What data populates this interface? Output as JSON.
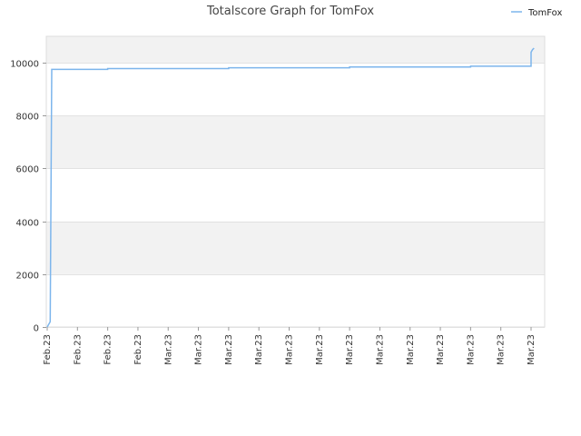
{
  "chart_data": {
    "type": "line",
    "title": "Totalscore Graph for TomFox",
    "xlabel": "",
    "ylabel": "",
    "ylim": [
      0,
      11000
    ],
    "yticks": [
      0,
      2000,
      4000,
      6000,
      8000,
      10000
    ],
    "ytick_labels": [
      "0",
      "2000",
      "4000",
      "6000",
      "8000",
      "10000"
    ],
    "xtick_labels": [
      "Feb.23",
      "Feb.23",
      "Feb.23",
      "Feb.23",
      "Mar.23",
      "Mar.23",
      "Mar.23",
      "Mar.23",
      "Mar.23",
      "Mar.23",
      "Mar.23",
      "Mar.23",
      "Mar.23",
      "Mar.23",
      "Mar.23",
      "Mar.23",
      "Mar.23"
    ],
    "grid": true,
    "banded_background": true,
    "legend_position": "top-right",
    "series": [
      {
        "name": "TomFox",
        "color": "#7cb5ec",
        "points": [
          [
            0.0,
            0
          ],
          [
            0.1,
            200
          ],
          [
            0.15,
            9750
          ],
          [
            2.0,
            9750
          ],
          [
            2.0,
            9780
          ],
          [
            6.0,
            9780
          ],
          [
            6.0,
            9810
          ],
          [
            10.0,
            9810
          ],
          [
            10.0,
            9840
          ],
          [
            14.0,
            9840
          ],
          [
            14.0,
            9870
          ],
          [
            16.0,
            9870
          ],
          [
            16.0,
            10400
          ],
          [
            16.05,
            10500
          ],
          [
            16.1,
            10550
          ]
        ]
      }
    ]
  }
}
